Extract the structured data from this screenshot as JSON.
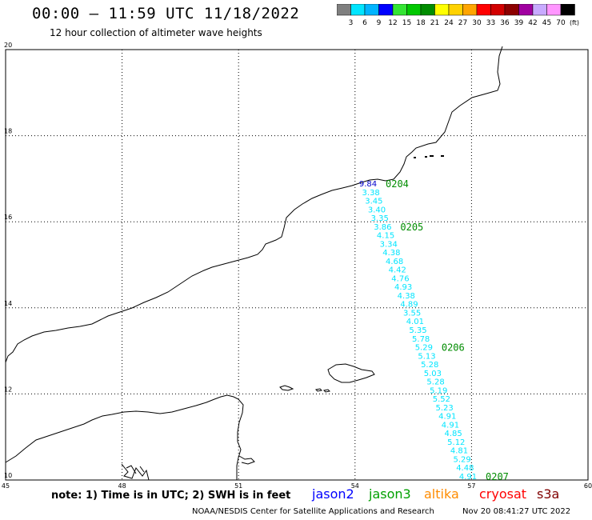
{
  "header": {
    "title": "00:00 – 11:59 UTC 11/18/2022",
    "subtitle": "12 hour collection of altimeter wave heights"
  },
  "colorbar": {
    "unit_label": "(ft)",
    "ticks": [
      "3",
      "6",
      "9",
      "12",
      "15",
      "18",
      "21",
      "24",
      "27",
      "30",
      "33",
      "36",
      "39",
      "42",
      "45",
      "70"
    ],
    "colors": [
      "#7f7f7f",
      "#00e5ff",
      "#00b4ff",
      "#0000ff",
      "#33e533",
      "#00c800",
      "#008c00",
      "#ffff00",
      "#ffd200",
      "#ffa500",
      "#ff0000",
      "#d20000",
      "#8c0000",
      "#a000a0",
      "#c8aaff",
      "#ff96ff",
      "#000000"
    ]
  },
  "map": {
    "lat_labels": [
      "20",
      "18",
      "16",
      "14",
      "12",
      "10"
    ],
    "lon_labels": [
      "45",
      "48",
      "51",
      "54",
      "57",
      "60"
    ],
    "lat_values": [
      20,
      18,
      16,
      14,
      12,
      10
    ],
    "lon_values": [
      45,
      48,
      51,
      54,
      57,
      60
    ],
    "track_color": "#00e5ff",
    "first_color": "#0000cc",
    "pass_color": "#008c00",
    "swh_labels": [
      "9.84",
      "3.38",
      "3.45",
      "3.40",
      "3.35",
      "3.86",
      "4.15",
      "3.34",
      "4.38",
      "4.68",
      "4.42",
      "4.76",
      "4.93",
      "4.38",
      "4.89",
      "3.55",
      "4.01",
      "5.35",
      "5.78",
      "5.29",
      "5.13",
      "5.28",
      "5.03",
      "5.28",
      "5.19",
      "5.52",
      "5.23",
      "4.91",
      "4.91",
      "4.85",
      "5.12",
      "4.81",
      "5.29",
      "4.48",
      "4.91"
    ],
    "passes": [
      {
        "label": "0204",
        "index": 0
      },
      {
        "label": "0205",
        "index": 5
      },
      {
        "label": "0206",
        "index": 19
      },
      {
        "label": "0207",
        "index": 34
      }
    ]
  },
  "footer": {
    "note": "note: 1) Time is in UTC; 2) SWH is in feet",
    "missions": [
      {
        "name": "jason2",
        "color": "#0000ff"
      },
      {
        "name": "jason3",
        "color": "#00a000"
      },
      {
        "name": "altika",
        "color": "#ff8c00"
      },
      {
        "name": "cryosat",
        "color": "#ff0000"
      },
      {
        "name": "s3a",
        "color": "#800000"
      }
    ],
    "credit": "NOAA/NESDIS Center for Satellite Applications and Research",
    "timestamp": "Nov 20 08:41:27 UTC 2022"
  }
}
